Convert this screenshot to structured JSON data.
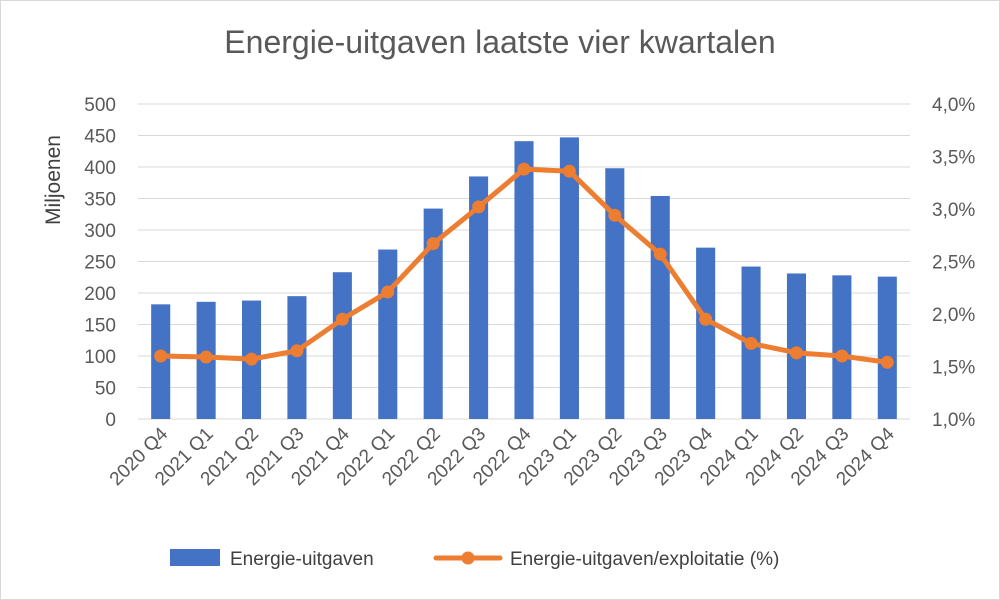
{
  "chart_data": {
    "type": "bar",
    "title": "Energie-uitgaven laatste vier kwartalen",
    "xlabel": "",
    "ylabel": "Miljoenen",
    "y2label": "",
    "categories": [
      "2020 Q4",
      "2021 Q1",
      "2021 Q2",
      "2021 Q3",
      "2021 Q4",
      "2022 Q1",
      "2022 Q2",
      "2022 Q3",
      "2022 Q4",
      "2023 Q1",
      "2023 Q2",
      "2023 Q3",
      "2023 Q4",
      "2024 Q1",
      "2024 Q2",
      "2024 Q3",
      "2024 Q4"
    ],
    "ylim": [
      0,
      500
    ],
    "yticks": [
      "0",
      "50",
      "100",
      "150",
      "200",
      "250",
      "300",
      "350",
      "400",
      "450",
      "500"
    ],
    "y2lim": [
      1.0,
      4.0
    ],
    "y2ticks": [
      "1,0%",
      "1,5%",
      "2,0%",
      "2,5%",
      "3,0%",
      "3,5%",
      "4,0%"
    ],
    "grid": true,
    "legend_position": "bottom",
    "series": [
      {
        "name": "Energie-uitgaven",
        "type": "bar",
        "axis": "left",
        "color": "#4472c4",
        "values": [
          182,
          186,
          188,
          195,
          233,
          269,
          334,
          385,
          441,
          447,
          398,
          354,
          272,
          242,
          231,
          228,
          226
        ]
      },
      {
        "name": "Energie-uitgaven/exploitatie (%)",
        "type": "line",
        "axis": "right",
        "color": "#ed7d31",
        "values": [
          1.6,
          1.59,
          1.57,
          1.65,
          1.95,
          2.21,
          2.67,
          3.02,
          3.38,
          3.36,
          2.94,
          2.57,
          1.95,
          1.72,
          1.63,
          1.6,
          1.54
        ]
      }
    ]
  }
}
